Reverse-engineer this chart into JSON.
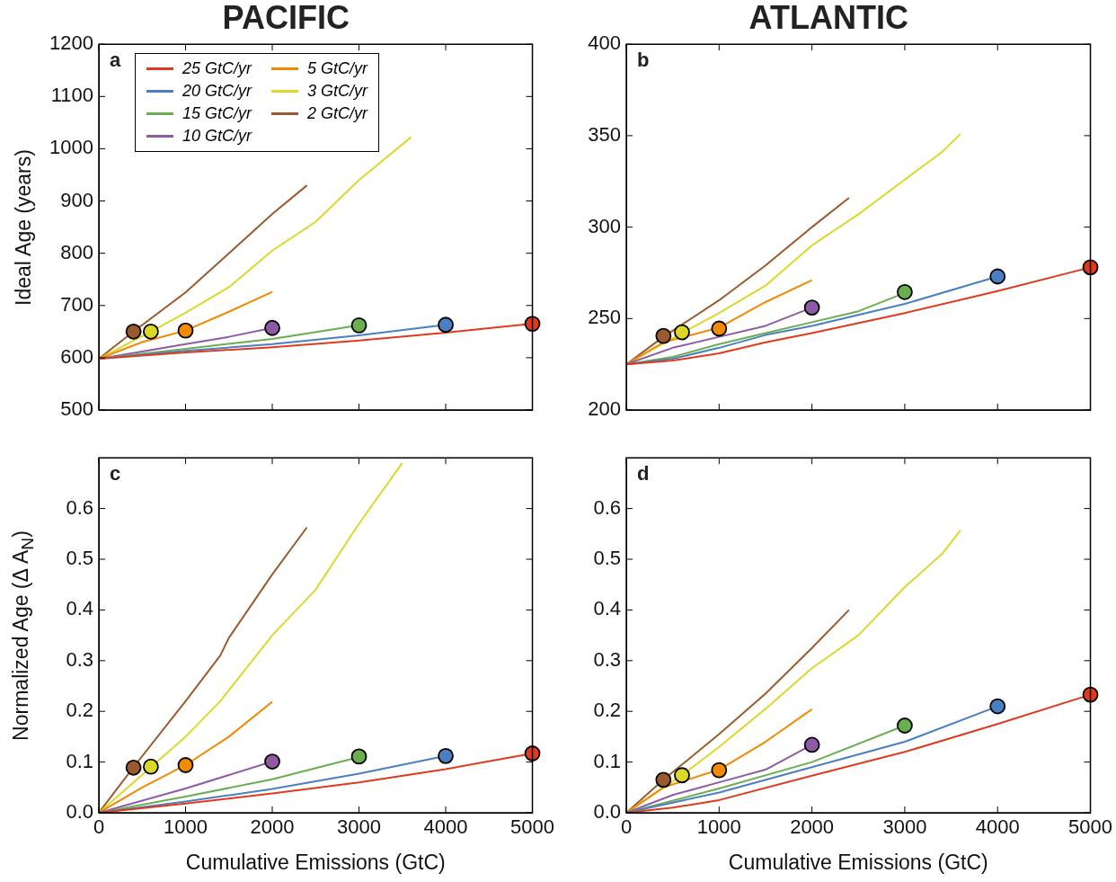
{
  "chart_data": [
    {
      "type": "line",
      "title": "PACIFIC",
      "ylabel": "Ideal Age (years)",
      "annotations": [
        "a"
      ],
      "xlim": [
        0,
        5000
      ],
      "xticks": [
        0,
        1000,
        2000,
        3000,
        4000,
        5000
      ],
      "ylim": [
        500,
        1200
      ],
      "yticks": [
        500,
        600,
        700,
        800,
        900,
        1000,
        1100,
        1200
      ],
      "tick_labels": "y",
      "grid": false,
      "legend": "top left",
      "line_style": "solid",
      "series": [
        {
          "name": "25 GtC/yr",
          "color": "#e03a1e",
          "x": [
            0,
            1000,
            2000,
            3000,
            4000,
            5000
          ],
          "values": [
            598,
            610,
            620,
            633,
            648,
            665
          ]
        },
        {
          "name": "20 GtC/yr",
          "color": "#4a7fc1",
          "x": [
            0,
            1000,
            2000,
            3000,
            4000
          ],
          "values": [
            598,
            613,
            626,
            643,
            663
          ]
        },
        {
          "name": "15 GtC/yr",
          "color": "#6aae4f",
          "x": [
            0,
            1000,
            2000,
            3000
          ],
          "values": [
            598,
            617,
            636,
            662
          ]
        },
        {
          "name": "10 GtC/yr",
          "color": "#8e5aa6",
          "x": [
            0,
            500,
            1000,
            1500,
            2000
          ],
          "values": [
            598,
            612,
            626,
            640,
            657
          ]
        },
        {
          "name": "5 GtC/yr",
          "color": "#f08a00",
          "x": [
            0,
            500,
            1000,
            1500,
            2000
          ],
          "values": [
            598,
            630,
            652,
            688,
            726
          ]
        },
        {
          "name": "3 GtC/yr",
          "color": "#dcd82a",
          "x": [
            0,
            600,
            1000,
            1500,
            2000,
            2500,
            3000,
            3600
          ],
          "values": [
            598,
            650,
            686,
            735,
            805,
            860,
            940,
            1022
          ]
        },
        {
          "name": "2 GtC/yr",
          "color": "#9b5a2d",
          "x": [
            0,
            400,
            1000,
            1500,
            2000,
            2400
          ],
          "values": [
            598,
            650,
            725,
            800,
            875,
            930
          ]
        },
        {
          "type": "scatter",
          "marker": "circle",
          "x": [
            400,
            600,
            1000,
            2000,
            3000,
            4000,
            5000
          ],
          "values": [
            650,
            650,
            652,
            657,
            662,
            663,
            665
          ],
          "colors": [
            "#9b5a2d",
            "#dcd82a",
            "#f08a00",
            "#8e5aa6",
            "#6aae4f",
            "#4a7fc1",
            "#e03a1e"
          ]
        }
      ]
    },
    {
      "type": "line",
      "title": "ATLANTIC",
      "annotations": [
        "b"
      ],
      "xlim": [
        0,
        5000
      ],
      "xticks": [
        0,
        1000,
        2000,
        3000,
        4000,
        5000
      ],
      "ylim": [
        200,
        400
      ],
      "yticks": [
        200,
        250,
        300,
        350,
        400
      ],
      "tick_labels": "y",
      "grid": false,
      "line_style": "solid",
      "series": [
        {
          "color": "#e03a1e",
          "x": [
            0,
            500,
            1000,
            1500,
            2000,
            3000,
            4000,
            5000
          ],
          "values": [
            225,
            227,
            231,
            237,
            242,
            253,
            265,
            278
          ]
        },
        {
          "color": "#4a7fc1",
          "x": [
            0,
            500,
            1000,
            1500,
            2000,
            3000,
            4000
          ],
          "values": [
            225,
            228,
            234,
            241,
            246,
            258,
            273
          ]
        },
        {
          "color": "#6aae4f",
          "x": [
            0,
            500,
            1000,
            1500,
            2000,
            2500,
            3000
          ],
          "values": [
            225,
            229,
            236,
            242,
            248,
            254,
            264
          ]
        },
        {
          "color": "#8e5aa6",
          "x": [
            0,
            500,
            1000,
            1500,
            2000
          ],
          "values": [
            225,
            234,
            240,
            246,
            256
          ]
        },
        {
          "color": "#f08a00",
          "x": [
            0,
            400,
            1000,
            1500,
            2000
          ],
          "values": [
            225,
            237,
            245,
            259,
            271
          ]
        },
        {
          "color": "#dcd82a",
          "x": [
            0,
            600,
            1000,
            1500,
            2000,
            2500,
            3000,
            3400,
            3600
          ],
          "values": [
            225,
            242,
            253,
            268,
            290,
            307,
            326,
            341,
            351
          ]
        },
        {
          "color": "#9b5a2d",
          "x": [
            0,
            400,
            1000,
            1500,
            2000,
            2400
          ],
          "values": [
            225,
            240,
            260,
            279,
            300,
            316
          ]
        },
        {
          "type": "scatter",
          "marker": "circle",
          "x": [
            400,
            600,
            1000,
            2000,
            3000,
            4000,
            5000
          ],
          "values": [
            240.5,
            242.5,
            244.5,
            256,
            264.5,
            273,
            278
          ],
          "colors": [
            "#9b5a2d",
            "#dcd82a",
            "#f08a00",
            "#8e5aa6",
            "#6aae4f",
            "#4a7fc1",
            "#e03a1e"
          ]
        }
      ]
    },
    {
      "type": "line",
      "xlabel": "Cumulative Emissions (GtC)",
      "ylabel": "Normalized Age  (Δ A$_{N}$)",
      "annotations": [
        "c"
      ],
      "xlim": [
        0,
        5000
      ],
      "xticks": [
        0,
        1000,
        2000,
        3000,
        4000,
        5000
      ],
      "ylim": [
        0,
        0.7
      ],
      "yticks": [
        {
          "value": 0,
          "label": "0.0"
        },
        0.1,
        0.2,
        0.3,
        0.4,
        0.5,
        0.6
      ],
      "grid": false,
      "line_style": "solid",
      "series": [
        {
          "color": "#e03a1e",
          "x": [
            0,
            1000,
            2000,
            3000,
            4000,
            5000
          ],
          "values": [
            0,
            0.018,
            0.038,
            0.06,
            0.086,
            0.117
          ]
        },
        {
          "color": "#4a7fc1",
          "x": [
            0,
            1000,
            2000,
            3000,
            4000
          ],
          "values": [
            0,
            0.022,
            0.047,
            0.077,
            0.112
          ]
        },
        {
          "color": "#6aae4f",
          "x": [
            0,
            1000,
            2000,
            3000
          ],
          "values": [
            0,
            0.032,
            0.066,
            0.11
          ]
        },
        {
          "color": "#8e5aa6",
          "x": [
            0,
            1000,
            2000
          ],
          "values": [
            0,
            0.048,
            0.101
          ]
        },
        {
          "color": "#f08a00",
          "x": [
            0,
            500,
            1000,
            1500,
            2000
          ],
          "values": [
            0,
            0.05,
            0.094,
            0.15,
            0.219
          ]
        },
        {
          "color": "#dcd82a",
          "x": [
            0,
            600,
            1000,
            1400,
            2000,
            2500,
            3000,
            3500
          ],
          "values": [
            0,
            0.09,
            0.15,
            0.22,
            0.35,
            0.44,
            0.57,
            0.69
          ]
        },
        {
          "color": "#9b5a2d",
          "x": [
            0,
            400,
            1000,
            1400,
            1500,
            2000,
            2400
          ],
          "values": [
            0,
            0.09,
            0.22,
            0.31,
            0.345,
            0.47,
            0.563
          ]
        },
        {
          "type": "scatter",
          "marker": "circle",
          "x": [
            400,
            600,
            1000,
            2000,
            3000,
            4000,
            5000
          ],
          "values": [
            0.089,
            0.091,
            0.094,
            0.101,
            0.111,
            0.112,
            0.117
          ],
          "colors": [
            "#9b5a2d",
            "#dcd82a",
            "#f08a00",
            "#8e5aa6",
            "#6aae4f",
            "#4a7fc1",
            "#e03a1e"
          ]
        }
      ]
    },
    {
      "type": "line",
      "xlabel": "Cumulative Emissions (GtC)",
      "annotations": [
        "d"
      ],
      "xlim": [
        0,
        5000
      ],
      "xticks": [
        0,
        1000,
        2000,
        3000,
        4000,
        5000
      ],
      "ylim": [
        0,
        0.7
      ],
      "yticks": [
        {
          "value": 0,
          "label": "0.0"
        },
        0.1,
        0.2,
        0.3,
        0.4,
        0.5,
        0.6
      ],
      "grid": false,
      "line_style": "solid",
      "series": [
        {
          "color": "#e03a1e",
          "x": [
            0,
            500,
            1000,
            2000,
            3000,
            4000,
            5000
          ],
          "values": [
            0,
            0.01,
            0.025,
            0.073,
            0.12,
            0.175,
            0.233
          ]
        },
        {
          "color": "#4a7fc1",
          "x": [
            0,
            1000,
            2000,
            3000,
            4000
          ],
          "values": [
            0,
            0.04,
            0.09,
            0.14,
            0.21
          ]
        },
        {
          "color": "#6aae4f",
          "x": [
            0,
            1000,
            2000,
            3000
          ],
          "values": [
            0,
            0.048,
            0.1,
            0.172
          ]
        },
        {
          "color": "#8e5aa6",
          "x": [
            0,
            500,
            1000,
            1500,
            2000
          ],
          "values": [
            0,
            0.035,
            0.06,
            0.085,
            0.134
          ]
        },
        {
          "color": "#f08a00",
          "x": [
            0,
            400,
            1000,
            1500,
            2000
          ],
          "values": [
            0,
            0.05,
            0.085,
            0.14,
            0.204
          ]
        },
        {
          "color": "#dcd82a",
          "x": [
            0,
            600,
            1000,
            1500,
            2000,
            2500,
            3000,
            3400,
            3600
          ],
          "values": [
            0,
            0.074,
            0.13,
            0.205,
            0.285,
            0.35,
            0.445,
            0.51,
            0.557
          ]
        },
        {
          "color": "#9b5a2d",
          "x": [
            0,
            400,
            1000,
            1500,
            2000,
            2400
          ],
          "values": [
            0,
            0.065,
            0.155,
            0.235,
            0.325,
            0.4
          ]
        },
        {
          "type": "scatter",
          "marker": "circle",
          "x": [
            400,
            600,
            1000,
            2000,
            3000,
            4000,
            5000
          ],
          "values": [
            0.065,
            0.074,
            0.084,
            0.134,
            0.172,
            0.21,
            0.233
          ],
          "colors": [
            "#9b5a2d",
            "#dcd82a",
            "#f08a00",
            "#8e5aa6",
            "#6aae4f",
            "#4a7fc1",
            "#e03a1e"
          ]
        }
      ]
    }
  ]
}
